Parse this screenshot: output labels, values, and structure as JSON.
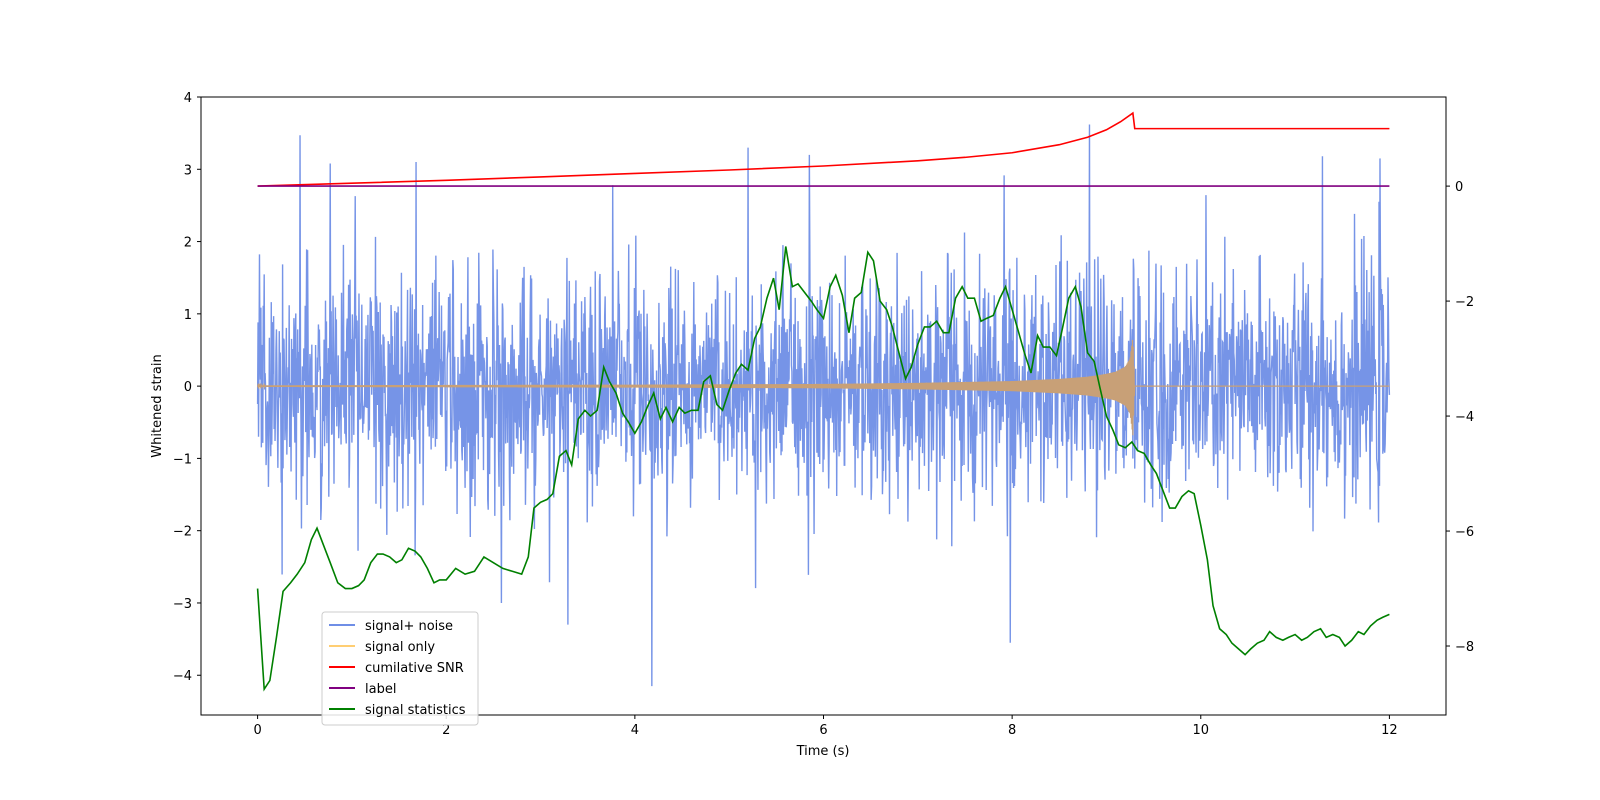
{
  "chart_data": {
    "type": "line",
    "title": "",
    "xlabel": "Time (s)",
    "ylabel": "Whitened strain",
    "xlim": [
      -0.6,
      12.6
    ],
    "ylim": [
      -4.55,
      4.0
    ],
    "y2lim": [
      -9.2,
      1.55
    ],
    "x_ticks": [
      0,
      2,
      4,
      6,
      8,
      10,
      12
    ],
    "x_tick_labels": [
      "0",
      "2",
      "4",
      "6",
      "8",
      "10",
      "12"
    ],
    "y_ticks": [
      4,
      3,
      2,
      1,
      0,
      -1,
      -2,
      -3,
      -4
    ],
    "y_tick_labels": [
      "4",
      "3",
      "2",
      "1",
      "0",
      "−1",
      "−2",
      "−3",
      "−4"
    ],
    "y2_ticks": [
      0,
      -2,
      -4,
      -6,
      -8
    ],
    "y2_tick_labels": [
      "0",
      "−2",
      "−4",
      "−6",
      "−8"
    ],
    "legend_position": "lower-left",
    "series": [
      {
        "name": "signal+ noise",
        "axis": "left",
        "color": "#6f8ee6",
        "kind": "noise",
        "x_range": [
          0,
          12
        ],
        "approx_std": 0.8,
        "approx_peaks": [
          {
            "x": 0.45,
            "y": 3.47
          },
          {
            "x": 0.77,
            "y": 3.08
          },
          {
            "x": 1.68,
            "y": 3.1
          },
          {
            "x": 5.2,
            "y": 3.3
          },
          {
            "x": 5.85,
            "y": 3.2
          },
          {
            "x": 8.82,
            "y": 3.62
          },
          {
            "x": 11.29,
            "y": 3.18
          },
          {
            "x": 11.9,
            "y": 3.15
          },
          {
            "x": 4.18,
            "y": -4.15
          },
          {
            "x": 3.29,
            "y": -3.3
          },
          {
            "x": 7.98,
            "y": -3.55
          }
        ]
      },
      {
        "name": "signal only",
        "axis": "left",
        "color": "#c8a077",
        "kind": "chirp",
        "x": [
          0,
          2,
          4,
          6,
          7,
          8,
          8.5,
          8.8,
          9.0,
          9.1,
          9.2,
          9.25,
          9.28,
          9.3,
          12
        ],
        "envelope": [
          0.01,
          0.015,
          0.02,
          0.03,
          0.045,
          0.07,
          0.1,
          0.13,
          0.17,
          0.2,
          0.27,
          0.38,
          0.68,
          0.0,
          0.0
        ]
      },
      {
        "name": "cumilative SNR",
        "axis": "right",
        "color": "#ff0000",
        "x": [
          0,
          1,
          2,
          3,
          4,
          5,
          6,
          7,
          7.5,
          8,
          8.5,
          8.8,
          9.0,
          9.15,
          9.28,
          9.3,
          12
        ],
        "values": [
          0.0,
          0.05,
          0.1,
          0.16,
          0.22,
          0.28,
          0.35,
          0.44,
          0.5,
          0.58,
          0.72,
          0.85,
          0.98,
          1.12,
          1.27,
          1.0,
          1.0
        ]
      },
      {
        "name": "label",
        "axis": "right",
        "color": "#800080",
        "x": [
          0,
          12
        ],
        "values": [
          0,
          0
        ]
      },
      {
        "name": "signal statistics",
        "axis": "right",
        "color": "#008000",
        "x": [
          0.0,
          0.07,
          0.13,
          0.2,
          0.27,
          0.35,
          0.42,
          0.5,
          0.57,
          0.63,
          0.7,
          0.77,
          0.85,
          0.93,
          1.0,
          1.07,
          1.13,
          1.2,
          1.27,
          1.33,
          1.4,
          1.47,
          1.53,
          1.6,
          1.67,
          1.73,
          1.8,
          1.87,
          1.93,
          2.0,
          2.1,
          2.2,
          2.3,
          2.4,
          2.5,
          2.6,
          2.7,
          2.8,
          2.87,
          2.93,
          3.0,
          3.07,
          3.13,
          3.2,
          3.27,
          3.33,
          3.4,
          3.47,
          3.53,
          3.6,
          3.67,
          3.73,
          3.8,
          3.87,
          3.93,
          4.0,
          4.07,
          4.13,
          4.2,
          4.27,
          4.33,
          4.4,
          4.47,
          4.53,
          4.6,
          4.67,
          4.73,
          4.8,
          4.87,
          4.93,
          5.0,
          5.07,
          5.13,
          5.2,
          5.27,
          5.33,
          5.4,
          5.47,
          5.53,
          5.6,
          5.67,
          5.73,
          5.8,
          5.87,
          5.93,
          6.0,
          6.07,
          6.13,
          6.2,
          6.27,
          6.33,
          6.4,
          6.47,
          6.53,
          6.6,
          6.67,
          6.73,
          6.8,
          6.87,
          6.93,
          7.0,
          7.07,
          7.13,
          7.2,
          7.27,
          7.33,
          7.4,
          7.47,
          7.53,
          7.6,
          7.67,
          7.73,
          7.8,
          7.87,
          7.93,
          8.0,
          8.07,
          8.13,
          8.2,
          8.27,
          8.33,
          8.4,
          8.47,
          8.53,
          8.6,
          8.67,
          8.73,
          8.8,
          8.87,
          8.93,
          9.0,
          9.07,
          9.13,
          9.2,
          9.27,
          9.33,
          9.4,
          9.47,
          9.53,
          9.6,
          9.67,
          9.73,
          9.8,
          9.87,
          9.93,
          10.0,
          10.07,
          10.13,
          10.2,
          10.27,
          10.33,
          10.4,
          10.47,
          10.53,
          10.6,
          10.67,
          10.73,
          10.8,
          10.87,
          10.93,
          11.0,
          11.07,
          11.13,
          11.2,
          11.27,
          11.33,
          11.4,
          11.47,
          11.53,
          11.6,
          11.67,
          11.73,
          11.8,
          11.87,
          11.93,
          12.0
        ],
        "values": [
          -7.0,
          -8.75,
          -8.6,
          -7.85,
          -7.05,
          -6.9,
          -6.75,
          -6.55,
          -6.15,
          -5.95,
          -6.25,
          -6.55,
          -6.9,
          -7.0,
          -7.0,
          -6.95,
          -6.85,
          -6.55,
          -6.4,
          -6.4,
          -6.45,
          -6.55,
          -6.5,
          -6.3,
          -6.35,
          -6.45,
          -6.65,
          -6.9,
          -6.85,
          -6.85,
          -6.65,
          -6.75,
          -6.7,
          -6.45,
          -6.55,
          -6.65,
          -6.7,
          -6.75,
          -6.45,
          -5.6,
          -5.5,
          -5.45,
          -5.35,
          -4.7,
          -4.6,
          -4.85,
          -4.05,
          -3.9,
          -4.0,
          -3.9,
          -3.15,
          -3.4,
          -3.6,
          -3.95,
          -4.1,
          -4.3,
          -4.1,
          -3.85,
          -3.6,
          -4.05,
          -3.85,
          -4.1,
          -3.85,
          -3.95,
          -3.9,
          -3.9,
          -3.4,
          -3.3,
          -3.8,
          -3.9,
          -3.55,
          -3.25,
          -3.1,
          -3.2,
          -2.65,
          -2.45,
          -1.95,
          -1.6,
          -2.15,
          -1.05,
          -1.75,
          -1.7,
          -1.85,
          -2.0,
          -2.15,
          -2.3,
          -1.75,
          -1.55,
          -1.9,
          -2.55,
          -1.95,
          -1.85,
          -1.15,
          -1.3,
          -2.0,
          -2.15,
          -2.45,
          -2.9,
          -3.35,
          -3.15,
          -2.75,
          -2.45,
          -2.45,
          -2.35,
          -2.55,
          -2.55,
          -1.95,
          -1.75,
          -1.95,
          -1.95,
          -2.35,
          -2.3,
          -2.25,
          -1.95,
          -1.75,
          -2.15,
          -2.55,
          -2.9,
          -3.25,
          -2.6,
          -2.8,
          -2.8,
          -2.95,
          -2.5,
          -1.95,
          -1.75,
          -2.1,
          -2.9,
          -3.05,
          -3.5,
          -4.0,
          -4.25,
          -4.5,
          -4.55,
          -4.45,
          -4.6,
          -4.65,
          -4.85,
          -5.0,
          -5.3,
          -5.6,
          -5.6,
          -5.4,
          -5.3,
          -5.35,
          -5.9,
          -6.5,
          -7.3,
          -7.7,
          -7.8,
          -7.95,
          -8.05,
          -8.15,
          -8.05,
          -7.95,
          -7.9,
          -7.75,
          -7.85,
          -7.9,
          -7.85,
          -7.8,
          -7.9,
          -7.85,
          -7.75,
          -7.7,
          -7.85,
          -7.8,
          -7.85,
          -8.0,
          -7.9,
          -7.75,
          -7.8,
          -7.65,
          -7.55,
          -7.5,
          -7.45
        ]
      }
    ]
  }
}
